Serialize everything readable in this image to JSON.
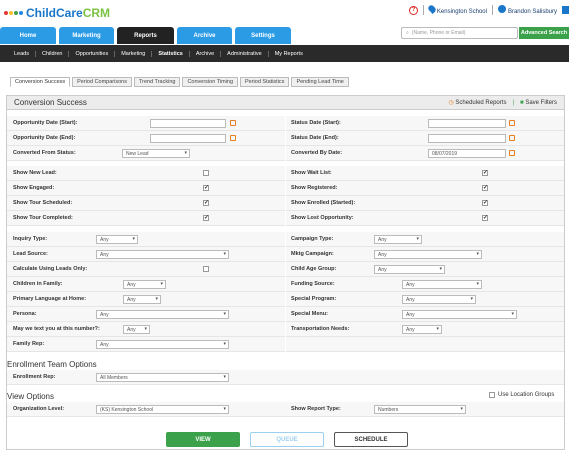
{
  "header": {
    "logo_child": "Child",
    "logo_care": "Care",
    "logo_crm": "CRM",
    "location": "Kensington School",
    "user": "Brandon Salisbury",
    "search_placeholder": "(Name, Phone or Email)",
    "advanced_search": "Advanced Search"
  },
  "tabs": [
    "Home",
    "Marketing",
    "Reports",
    "Archive",
    "Settings"
  ],
  "subnav": [
    "Leads",
    "Children",
    "Opportunities",
    "Marketing",
    "Statistics",
    "Archive",
    "Administrative",
    "My Reports"
  ],
  "inner_tabs": [
    "Conversion Success",
    "Period Comparisons",
    "Trend Tracking",
    "Conversion Timing",
    "Period Statistics",
    "Pending Lead Time"
  ],
  "panel": {
    "title": "Conversion Success",
    "scheduled_reports": "Scheduled Reports",
    "save_filters": "Save Filters"
  },
  "fields": {
    "opp_start": "Opportunity Date (Start):",
    "opp_end": "Opportunity Date (End):",
    "converted_from": "Converted From Status:",
    "converted_from_val": "New Lead",
    "status_start": "Status Date (Start):",
    "status_end": "Status Date (End):",
    "converted_by": "Converted By Date:",
    "converted_by_val": "08/07/2019",
    "show_new": "Show New Lead:",
    "show_engaged": "Show Engaged:",
    "show_scheduled": "Show Tour Scheduled:",
    "show_completed": "Show Tour Completed:",
    "show_wait": "Show Wait List:",
    "show_registered": "Show Registered:",
    "show_enrolled": "Show Enrolled (Started):",
    "show_lost": "Show Lost Opportunity:",
    "inquiry_type": "Inquiry Type:",
    "lead_source": "Lead Source:",
    "calc_leads": "Calculate Using Leads Only:",
    "children_family": "Children in Family:",
    "primary_lang": "Primary Language at Home:",
    "persona": "Persona:",
    "text_you": "May we text you at this number?:",
    "family_rep": "Family Rep:",
    "campaign_type": "Campaign Type:",
    "mktg_campaign": "Mktg Campaign:",
    "child_age": "Child Age Group:",
    "funding": "Funding Source:",
    "special_program": "Special Program:",
    "special_menu": "Special Menu:",
    "transport": "Transportation Needs:",
    "any": "Any"
  },
  "enrollment": {
    "title": "Enrollment Team Options",
    "rep": "Enrollment Rep:",
    "rep_val": "All Members"
  },
  "view": {
    "title": "View Options",
    "use_location": "Use Location Groups",
    "org_level": "Organization Level:",
    "org_val": "(KS) Kensington School",
    "report_type": "Show Report Type:",
    "report_val": "Numbers"
  },
  "buttons": {
    "view": "VIEW",
    "queue": "QUEUE",
    "schedule": "SCHEDULE"
  },
  "colors": {
    "brand_blue": "#2b9be6",
    "active_tab": "#222222",
    "green": "#3ba14b",
    "orange": "#e67e22"
  }
}
